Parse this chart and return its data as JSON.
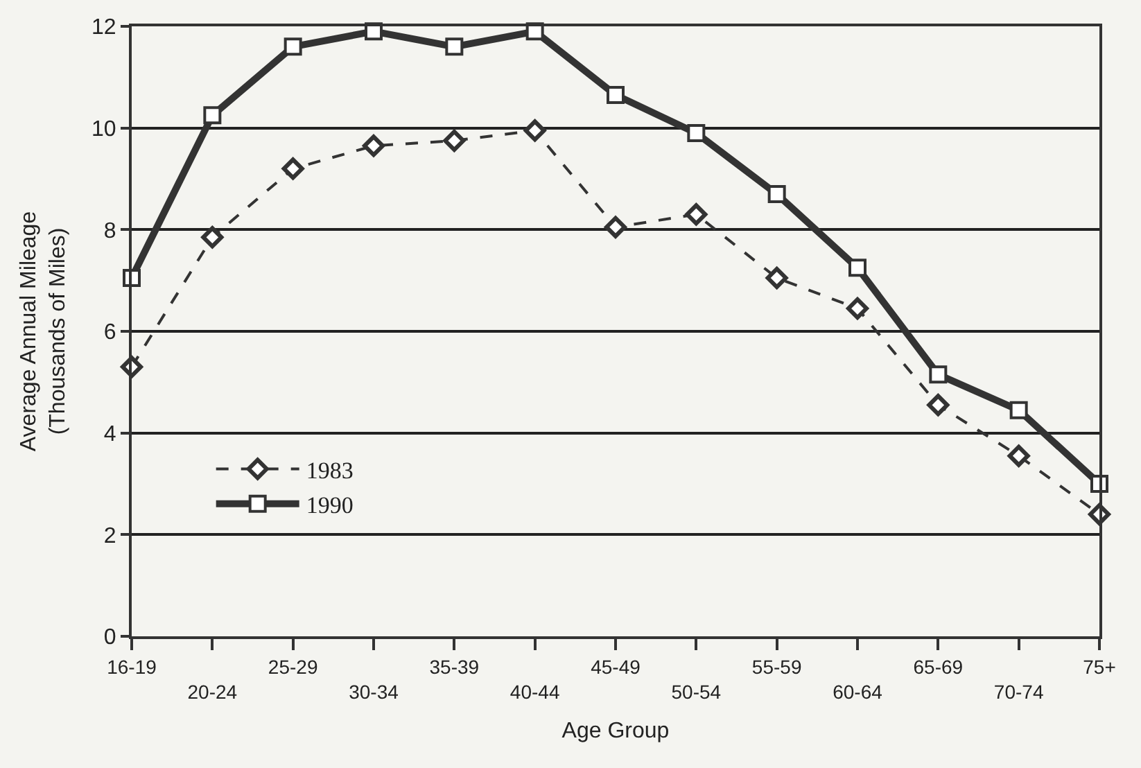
{
  "chart_data": {
    "type": "line",
    "xlabel": "Age Group",
    "ylabel": "Average Annual Mileage\n(Thousands of Miles)",
    "categories": [
      "16-19",
      "20-24",
      "25-29",
      "30-34",
      "35-39",
      "40-44",
      "45-49",
      "50-54",
      "55-59",
      "60-64",
      "65-69",
      "70-74",
      "75+"
    ],
    "series": [
      {
        "name": "1983",
        "color": "#333333",
        "line_style": "dashed",
        "marker": "diamond",
        "values": [
          5.3,
          7.85,
          9.2,
          9.65,
          9.75,
          9.95,
          8.05,
          8.3,
          7.05,
          6.45,
          4.55,
          3.55,
          2.4
        ]
      },
      {
        "name": "1990",
        "color": "#333333",
        "line_style": "solid",
        "marker": "square",
        "values": [
          7.05,
          10.25,
          11.6,
          11.9,
          11.6,
          11.9,
          10.65,
          9.9,
          8.7,
          7.25,
          5.15,
          4.45,
          3.0
        ]
      }
    ],
    "ylim": [
      0,
      12
    ],
    "yticks": [
      0,
      2,
      4,
      6,
      8,
      10,
      12
    ],
    "grid": "y",
    "legend": "left"
  }
}
